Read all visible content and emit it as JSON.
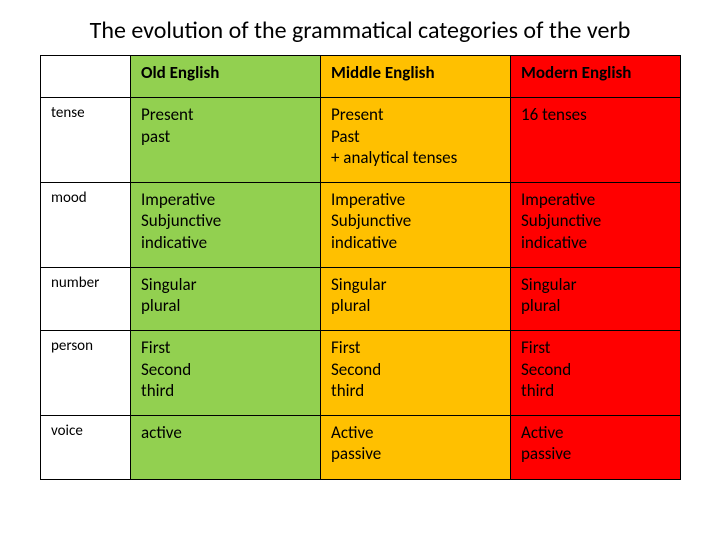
{
  "title": "The evolution of the grammatical categories of the verb",
  "colors": {
    "old": "#92d050",
    "middle": "#ffc000",
    "modern": "#ff0000",
    "border": "#000000",
    "background": "#ffffff"
  },
  "headers": {
    "blank": "",
    "old": "Old English",
    "middle": "Middle English",
    "modern": "Modern English"
  },
  "rows": {
    "tense": {
      "label": "tense",
      "old": "Present\npast",
      "middle": "Present\nPast\n+ analytical tenses",
      "modern": "16 tenses"
    },
    "mood": {
      "label": "mood",
      "old": "Imperative\nSubjunctive\nindicative",
      "middle": "Imperative\nSubjunctive\nindicative",
      "modern": "Imperative\nSubjunctive\nindicative"
    },
    "number": {
      "label": "number",
      "old": "Singular\nplural",
      "middle": "Singular\nplural",
      "modern": "Singular\nplural"
    },
    "person": {
      "label": "person",
      "old": "First\nSecond\nthird",
      "middle": "First\nSecond\nthird",
      "modern": "First\nSecond\nthird"
    },
    "voice": {
      "label": "voice",
      "old": "active",
      "middle": "Active\npassive",
      "modern": "Active\npassive"
    }
  },
  "fontsizes": {
    "title": 24,
    "header": 17,
    "cell": 17,
    "rowlabel": 15
  }
}
